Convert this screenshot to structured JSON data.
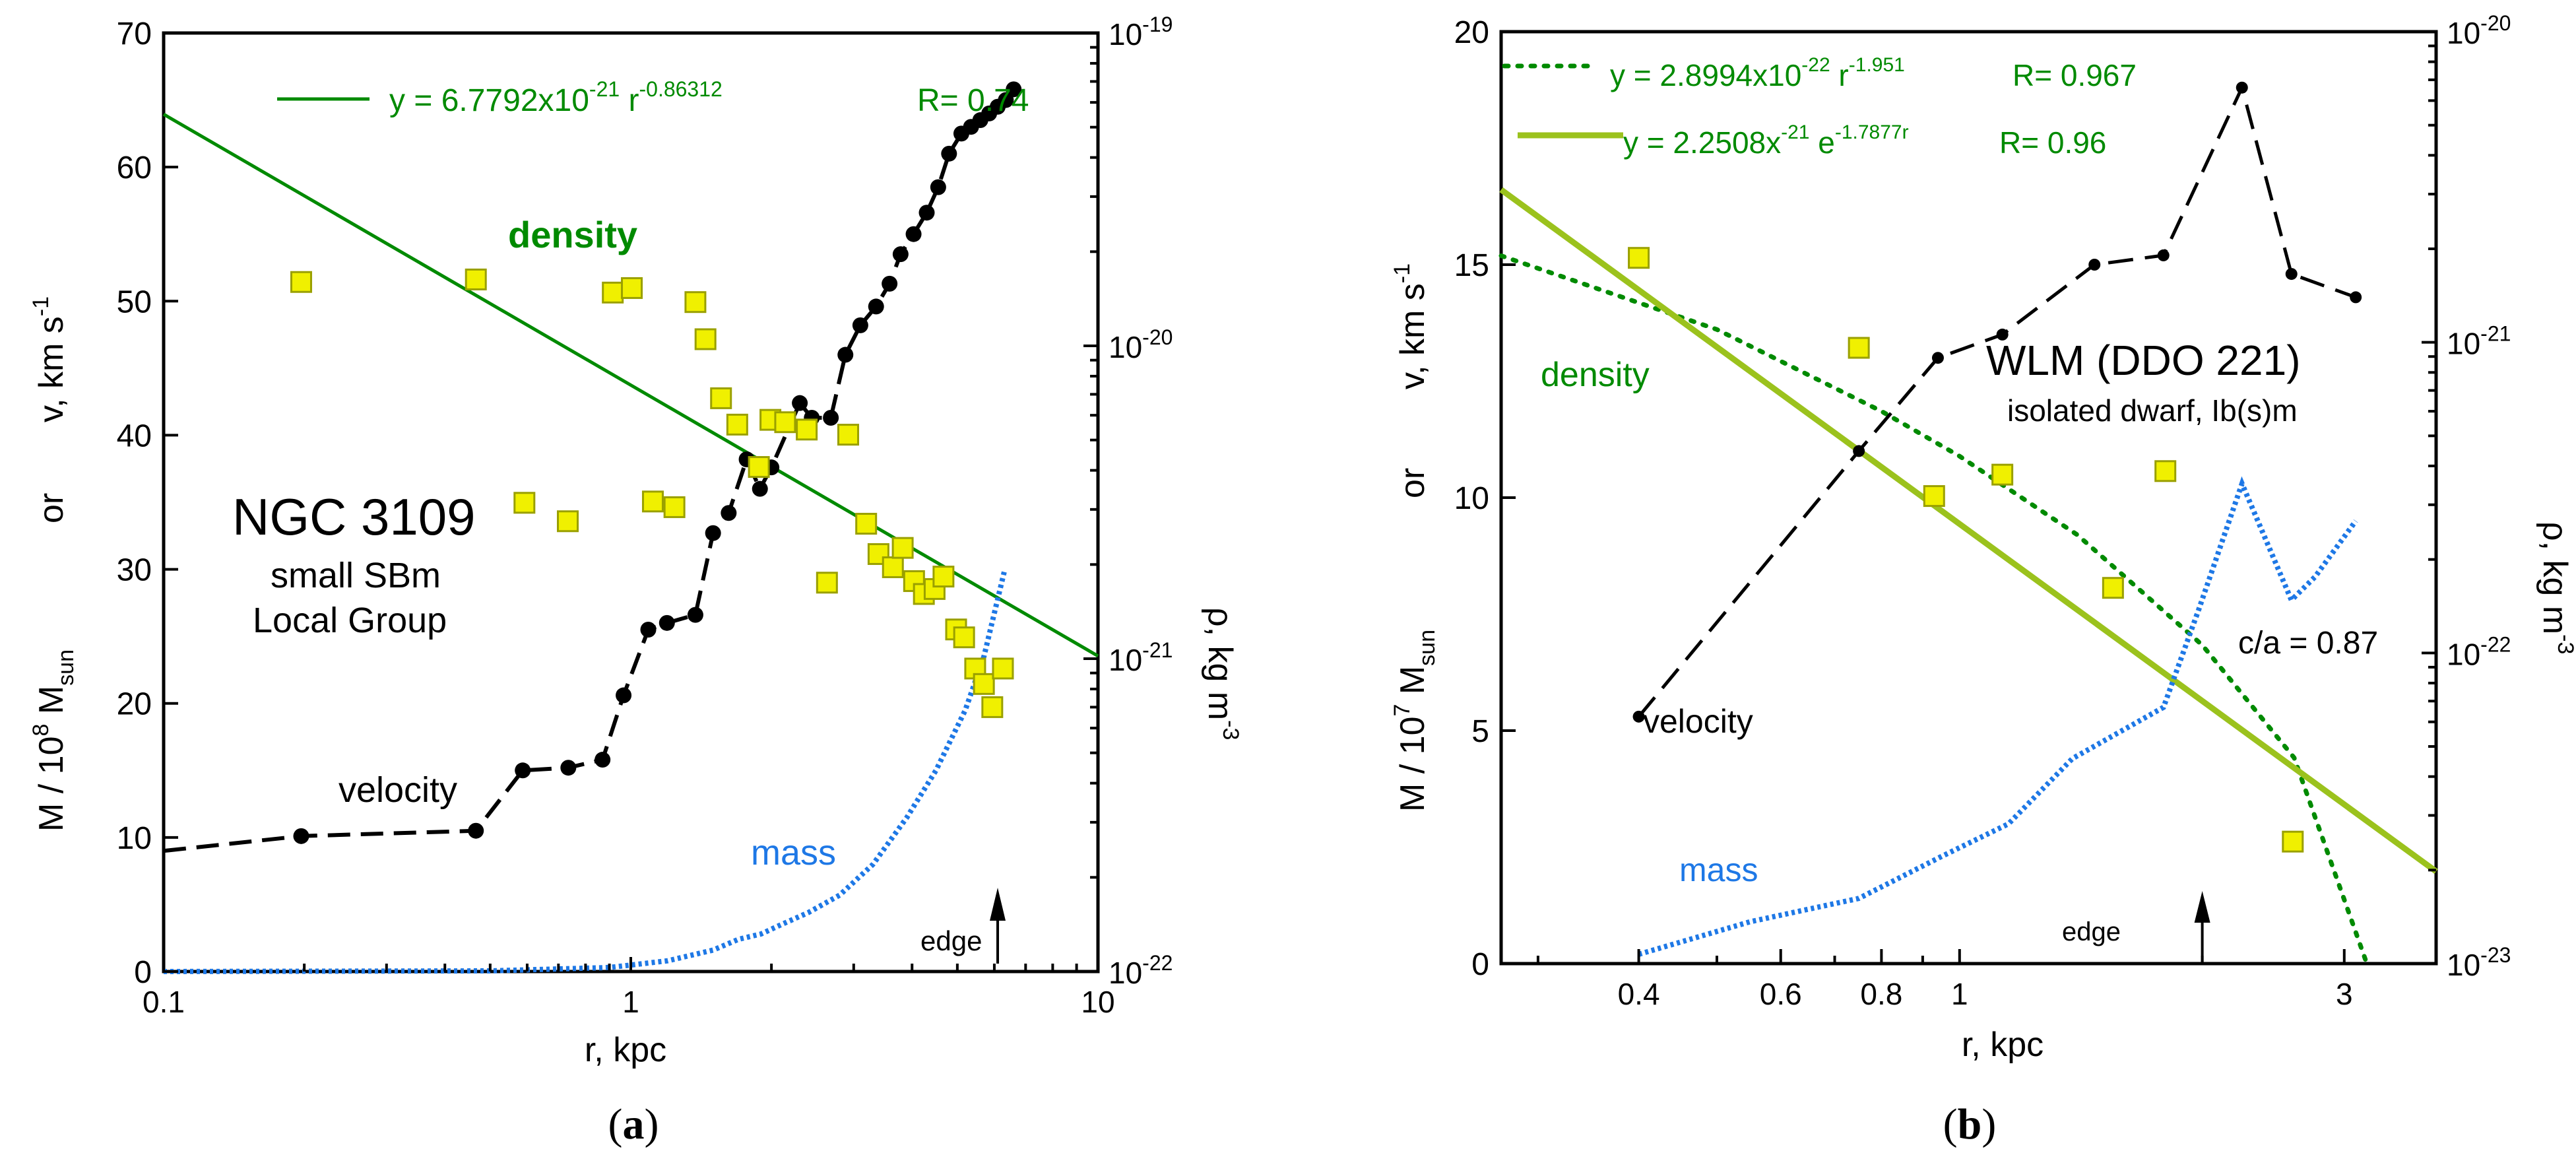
{
  "chart_data": [
    {
      "panel": "(a)",
      "type": "line",
      "title": "NGC 3109",
      "subtitle_lines": [
        "small SBm",
        "Local Group"
      ],
      "xlabel": "r, kpc",
      "xscale": "log",
      "xlim": [
        0.1,
        10
      ],
      "xticks": [
        "0.1",
        "1",
        "10"
      ],
      "ylabel_left": [
        "M / 10",
        "8",
        " M",
        "sun",
        "or",
        "v, km s",
        "-1"
      ],
      "ylim_left": [
        0,
        70
      ],
      "yticks_left": [
        "0",
        "10",
        "20",
        "30",
        "40",
        "50",
        "60",
        "70"
      ],
      "ylabel_right": [
        "ρ, kg m",
        "-3"
      ],
      "yscale_right": "log",
      "ylim_right": [
        1e-22,
        1e-19
      ],
      "yticks_right": [
        {
          "base": "10",
          "exp": "-22"
        },
        {
          "base": "10",
          "exp": "-21"
        },
        {
          "base": "10",
          "exp": "-20"
        },
        {
          "base": "10",
          "exp": "-19"
        }
      ],
      "legend": {
        "fit": {
          "text": "y = 6.7792x10",
          "exp1": "-21",
          "mid": " r",
          "exp2": "-0.86312",
          "r": "R= 0.74"
        }
      },
      "series": [
        {
          "name": "velocity",
          "style": "black dashed with filled circles",
          "x": [
            0.197,
            0.466,
            0.587,
            0.735,
            0.87,
            0.965,
            1.09,
            1.195,
            1.375,
            1.5,
            1.62,
            1.77,
            1.89,
            2.0,
            2.3,
            2.44,
            2.68,
            2.88,
            3.1,
            3.35,
            3.58,
            3.78,
            4.03,
            4.3,
            4.55,
            4.8,
            5.1,
            5.35,
            5.6,
            5.85,
            6.1,
            6.35,
            6.6
          ],
          "values": [
            10.1,
            10.5,
            15.0,
            15.2,
            15.8,
            20.6,
            25.5,
            26.0,
            26.6,
            32.7,
            34.2,
            38.2,
            36.0,
            37.6,
            42.4,
            41.3,
            41.3,
            46.0,
            48.2,
            49.6,
            51.3,
            53.5,
            55.0,
            56.6,
            58.5,
            61.0,
            62.5,
            63.0,
            63.5,
            64.0,
            64.5,
            65.0,
            65.8
          ],
          "start_x": 0.1,
          "start_value": 9.0
        },
        {
          "name": "mass",
          "style": "blue dotted",
          "x": [
            0.1,
            0.5,
            0.9,
            1.2,
            1.5,
            1.7,
            1.9,
            2.1,
            2.4,
            2.8,
            3.3,
            3.9,
            4.5,
            5.2,
            5.7,
            6.3
          ],
          "values": [
            0.0,
            0.05,
            0.3,
            0.8,
            1.6,
            2.4,
            2.8,
            3.5,
            4.4,
            5.7,
            8.0,
            11.5,
            15.0,
            19.5,
            23.5,
            29.8
          ]
        },
        {
          "name": "density",
          "style": "yellow squares, right axis",
          "x": [
            0.197,
            0.466,
            0.592,
            0.733,
            0.915,
            1.005,
            1.115,
            1.24,
            1.375,
            1.445,
            1.56,
            1.69,
            1.88,
            1.99,
            2.14,
            2.38,
            2.63,
            2.92,
            3.19,
            3.39,
            3.64,
            3.82,
            4.04,
            4.24,
            4.47,
            4.67,
            4.97,
            5.17,
            5.46,
            5.7,
            5.94,
            6.26
          ],
          "values": [
            1.6e-20,
            1.63e-20,
            3.15e-21,
            2.75e-21,
            1.48e-20,
            1.53e-20,
            3.18e-21,
            3.05e-21,
            1.38e-20,
            1.05e-20,
            6.8e-21,
            5.6e-21,
            4.1e-21,
            5.8e-21,
            5.7e-21,
            5.4e-21,
            1.75e-21,
            5.2e-21,
            2.7e-21,
            2.16e-21,
            1.96e-21,
            2.26e-21,
            1.77e-21,
            1.61e-21,
            1.67e-21,
            1.83e-21,
            1.24e-21,
            1.17e-21,
            9.3e-22,
            8.3e-22,
            7e-22,
            9.3e-22
          ]
        },
        {
          "name": "power-law fit",
          "style": "green solid, right axis",
          "x": [
            0.1,
            10
          ],
          "values": [
            5.5e-20,
            1.02e-21
          ]
        }
      ],
      "annotations": {
        "density_label": "density",
        "velocity_label": "velocity",
        "mass_label": "mass",
        "edge_label": "edge",
        "edge_x": 6.1
      }
    },
    {
      "panel": "(b)",
      "type": "line",
      "title": "WLM (DDO 221)",
      "subtitle_lines": [
        "isolated dwarf, Ib(s)m"
      ],
      "xlabel": "r, kpc",
      "xscale": "log",
      "xlim": [
        0.27,
        3.9
      ],
      "xticks": [
        "0.4",
        "0.6",
        "0.8",
        "1",
        "3"
      ],
      "ylabel_left": [
        "M / 10",
        "7",
        " M",
        "sun",
        "or",
        "v, km s",
        "-1"
      ],
      "ylim_left": [
        0,
        20
      ],
      "yticks_left": [
        "0",
        "5",
        "10",
        "15",
        "20"
      ],
      "ylabel_right": [
        "ρ, kg m",
        "-3"
      ],
      "yscale_right": "log",
      "ylim_right": [
        1e-23,
        1e-20
      ],
      "yticks_right": [
        {
          "base": "10",
          "exp": "-23"
        },
        {
          "base": "10",
          "exp": "-22"
        },
        {
          "base": "10",
          "exp": "-21"
        },
        {
          "base": "10",
          "exp": "-20"
        }
      ],
      "legend": {
        "fit1": {
          "text": "y = 2.8994x10",
          "exp1": "-22",
          "mid": " r",
          "exp2": "-1.951",
          "r": "R= 0.967"
        },
        "fit2": {
          "text": "y = 2.2508x",
          "exp1": "-21",
          "mid": " e",
          "exp2": "-1.7877r",
          "r": "R= 0.96"
        }
      },
      "series": [
        {
          "name": "velocity",
          "style": "black dashed with filled circles",
          "x": [
            0.4,
            0.75,
            0.94,
            1.13,
            1.47,
            1.79,
            2.24,
            2.58,
            3.1
          ],
          "values": [
            5.3,
            11.0,
            13.0,
            13.5,
            15.0,
            15.2,
            18.8,
            14.8,
            14.3
          ]
        },
        {
          "name": "mass",
          "style": "blue dotted",
          "x": [
            0.4,
            0.55,
            0.75,
            0.95,
            1.15,
            1.38,
            1.79,
            1.98,
            2.24,
            2.48,
            2.58,
            2.76,
            3.1
          ],
          "values": [
            0.2,
            0.9,
            1.4,
            2.3,
            3.0,
            4.4,
            5.5,
            7.6,
            10.3,
            8.5,
            7.8,
            8.3,
            9.5
          ]
        },
        {
          "name": "density",
          "style": "yellow squares, right axis",
          "x": [
            0.4,
            0.75,
            0.93,
            1.13,
            1.55,
            1.8,
            2.59
          ],
          "values": [
            1.87e-21,
            9.6e-22,
            3.2e-22,
            3.75e-22,
            1.62e-22,
            3.85e-22,
            2.47e-23
          ]
        },
        {
          "name": "power-law fit",
          "style": "green dotted, right axis",
          "x": [
            0.27,
            0.5,
            0.8,
            1.0,
            1.4,
            2.0,
            2.6,
            3.2
          ],
          "values": [
            1.9e-21,
            1.1e-21,
            6e-22,
            4.3e-22,
            2.4e-22,
            1.06e-22,
            4.6e-23,
            1e-23
          ]
        },
        {
          "name": "exponential fit",
          "style": "olive-green solid, right axis",
          "x": [
            0.27,
            3.9
          ],
          "values": [
            3.1e-21,
            1.98e-23
          ]
        }
      ],
      "annotations": {
        "density_label": "density",
        "velocity_label": "velocity",
        "mass_label": "mass",
        "edge_label": "edge",
        "edge_x": 2.0,
        "ca_label": "c/a = 0.87"
      }
    }
  ],
  "colors": {
    "green": "#008a00",
    "olive": "#9bc21d",
    "blue": "#1e78e6",
    "yellow": "#f0f000",
    "square_edge": "#9aa000",
    "black": "#000000"
  }
}
